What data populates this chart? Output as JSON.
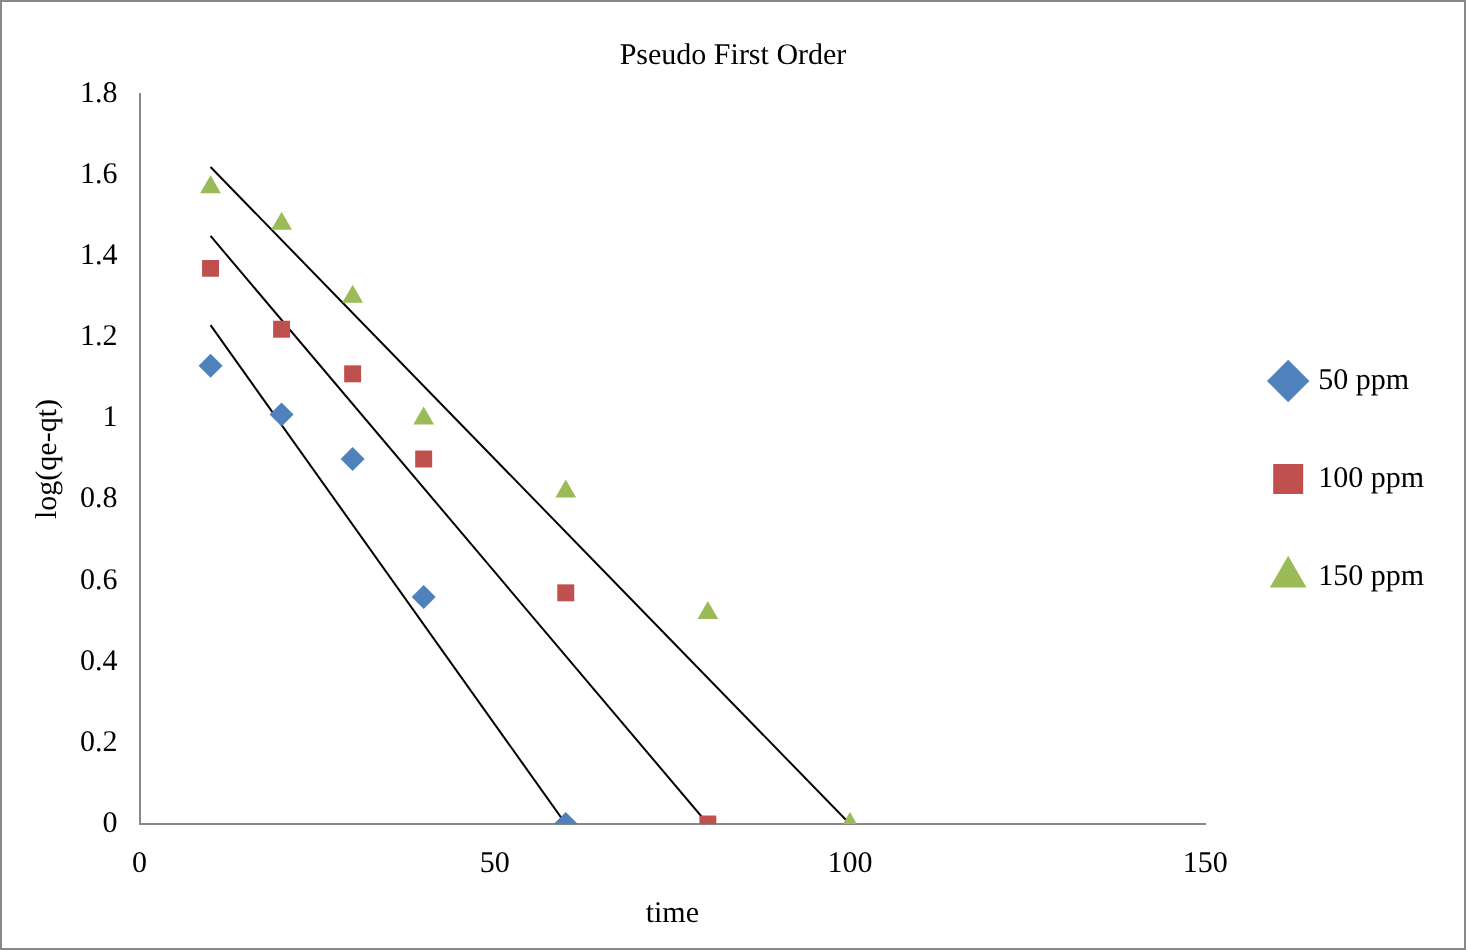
{
  "chart_data": {
    "type": "scatter",
    "title": "Pseudo First Order",
    "xlabel": "time",
    "ylabel": "log(qe-qt)",
    "xlim": [
      0,
      150
    ],
    "xticks": [
      0,
      50,
      100,
      150
    ],
    "ylim": [
      0,
      1.8
    ],
    "yticks": [
      0,
      0.2,
      0.4,
      0.6,
      0.8,
      1,
      1.2,
      1.4,
      1.6,
      1.8
    ],
    "grid": false,
    "legend": "right",
    "series": [
      {
        "name": "50 ppm",
        "color": "#4f81bd",
        "marker": "diamond",
        "x": [
          10,
          20,
          30,
          40,
          60
        ],
        "values": [
          1.13,
          1.01,
          0.9,
          0.56,
          0
        ]
      },
      {
        "name": "100 ppm",
        "color": "#c0504d",
        "marker": "square",
        "x": [
          10,
          20,
          30,
          40,
          60,
          80
        ],
        "values": [
          1.37,
          1.22,
          1.11,
          0.9,
          0.57,
          0
        ]
      },
      {
        "name": "150 ppm",
        "color": "#9bbb59",
        "marker": "triangle",
        "x": [
          10,
          20,
          30,
          40,
          60,
          80,
          100
        ],
        "values": [
          1.57,
          1.48,
          1.3,
          1.0,
          0.82,
          0.52,
          0
        ]
      },
      {
        "type": "line",
        "color": "#000000",
        "marker": "none",
        "x": [
          10,
          60
        ],
        "values": [
          1.23,
          0
        ]
      },
      {
        "type": "line",
        "color": "#000000",
        "marker": "none",
        "x": [
          10,
          80
        ],
        "values": [
          1.45,
          0
        ]
      },
      {
        "type": "line",
        "color": "#000000",
        "marker": "none",
        "x": [
          10,
          100
        ],
        "values": [
          1.62,
          0
        ]
      }
    ]
  }
}
